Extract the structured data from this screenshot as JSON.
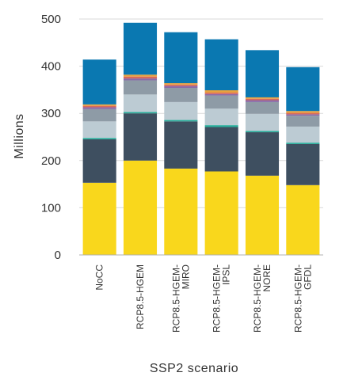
{
  "chart_data": {
    "type": "bar",
    "stacked": true,
    "xlabel": "SSP2 scenario",
    "ylabel": "Millions",
    "ylim": [
      0,
      500
    ],
    "yticks": [
      0,
      100,
      200,
      300,
      400,
      500
    ],
    "grid": true,
    "legend": "none",
    "categories": [
      [
        "NoCC"
      ],
      [
        "RCP8.5-HGEM"
      ],
      [
        "RCP8.5-HGEM-",
        "MIRO"
      ],
      [
        "RCP8.5-HGEM-",
        "IPSL"
      ],
      [
        "RCP8.5-HGEM-",
        "NORE"
      ],
      [
        "RCP8.5-HGEM-",
        "GFDL"
      ]
    ],
    "series": [
      {
        "color": "#F9D71C",
        "values": [
          153,
          200,
          183,
          177,
          168,
          148
        ]
      },
      {
        "color": "#3E4F60",
        "values": [
          92,
          100,
          100,
          94,
          92,
          87
        ]
      },
      {
        "color": "#2AAE9C",
        "values": [
          3,
          3,
          3,
          4,
          3,
          3
        ]
      },
      {
        "color": "#BCCBD3",
        "values": [
          35,
          37,
          38,
          35,
          36,
          34
        ]
      },
      {
        "color": "#8E9BA6",
        "values": [
          26,
          30,
          30,
          28,
          25,
          23
        ]
      },
      {
        "color": "#8A6BA8",
        "values": [
          4,
          4,
          4,
          3,
          4,
          3
        ]
      },
      {
        "color": "#D96A5A",
        "values": [
          3,
          4,
          3,
          3,
          3,
          3
        ]
      },
      {
        "color": "#E8A23E",
        "values": [
          3,
          4,
          3,
          5,
          3,
          4
        ]
      },
      {
        "color": "#0A78B1",
        "values": [
          95,
          110,
          108,
          108,
          100,
          93
        ]
      }
    ]
  }
}
